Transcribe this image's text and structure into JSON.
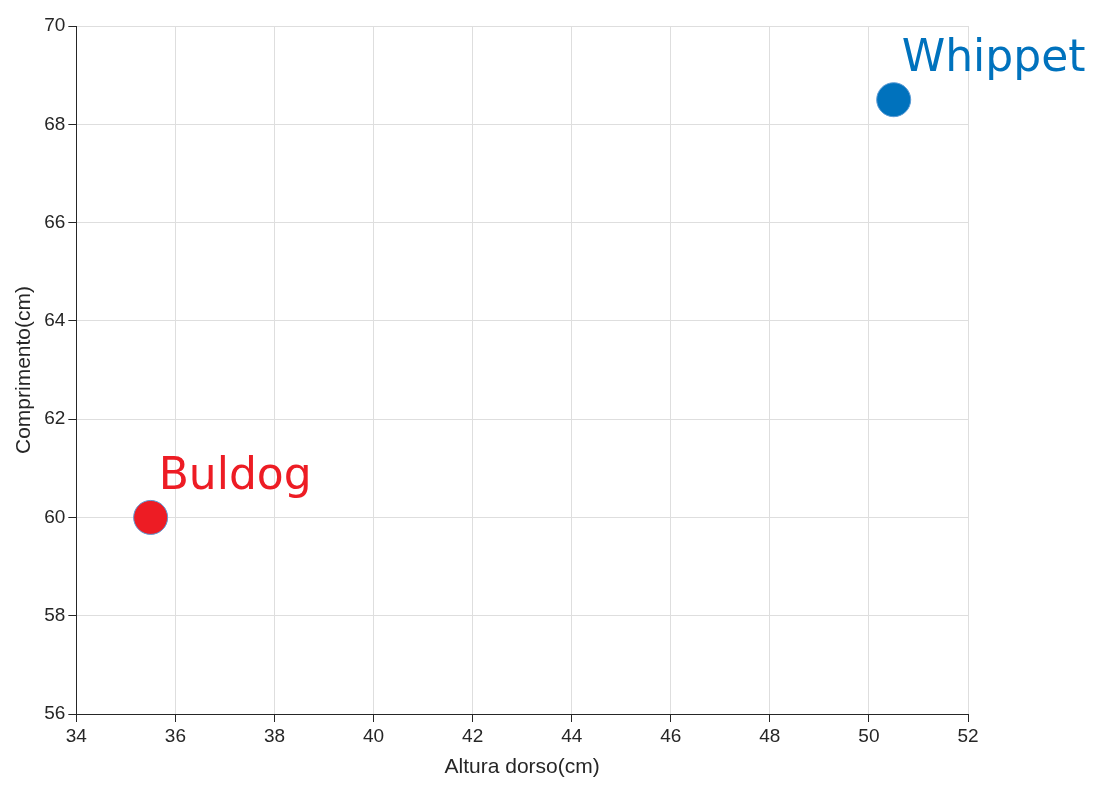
{
  "chart_data": {
    "type": "scatter",
    "xlabel": "Altura dorso(cm)",
    "ylabel": "Comprimento(cm)",
    "series": [
      {
        "name": "Buldog",
        "color": "#ed1c24",
        "x": [
          35.5
        ],
        "values": [
          60
        ]
      },
      {
        "name": "Whippet",
        "color": "#0072bd",
        "x": [
          50.5
        ],
        "values": [
          68.5
        ]
      }
    ],
    "xlim": [
      34,
      52
    ],
    "xticks": [
      34,
      36,
      38,
      40,
      42,
      44,
      46,
      48,
      50,
      52
    ],
    "ylim": [
      56,
      70
    ],
    "yticks": [
      56,
      58,
      60,
      62,
      64,
      66,
      68,
      70
    ],
    "grid": true,
    "marker": "circle",
    "legend": false
  }
}
